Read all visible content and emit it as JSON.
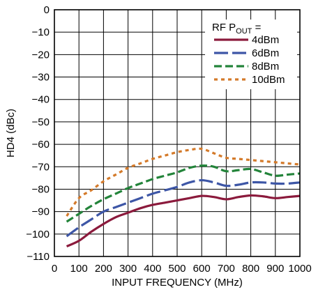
{
  "chart_data": {
    "type": "line",
    "xlabel": "INPUT FREQUENCY (MHz)",
    "ylabel": "HD4 (dBc)",
    "xlim": [
      0,
      1000
    ],
    "ylim": [
      -110,
      0
    ],
    "x_ticks": [
      0,
      100,
      200,
      300,
      400,
      500,
      600,
      700,
      800,
      900,
      1000
    ],
    "y_ticks": [
      0,
      -10,
      -20,
      -30,
      -40,
      -50,
      -60,
      -70,
      -80,
      -90,
      -100,
      -110
    ],
    "x_tick_labels": [
      "0",
      "100",
      "200",
      "300",
      "400",
      "500",
      "600",
      "700",
      "800",
      "900",
      "1000"
    ],
    "y_tick_labels": [
      "0",
      "−10",
      "−20",
      "−30",
      "−40",
      "−50",
      "−60",
      "−70",
      "−80",
      "−90",
      "−100",
      "−110"
    ],
    "grid": true,
    "legend": {
      "placement": "top-right",
      "title_main": "RF P",
      "title_sub": "OUT",
      "title_suffix": " ="
    },
    "series": [
      {
        "name": "4dBm",
        "color": "#8b1a3c",
        "dash": "solid",
        "x": [
          50,
          100,
          150,
          200,
          250,
          300,
          350,
          400,
          450,
          500,
          550,
          600,
          650,
          700,
          750,
          800,
          850,
          900,
          950,
          1000
        ],
        "y": [
          -105.5,
          -103,
          -99,
          -95.5,
          -92.5,
          -90.5,
          -88.5,
          -87,
          -86,
          -85,
          -84,
          -83,
          -83.5,
          -84.5,
          -83.5,
          -82.8,
          -83.2,
          -84,
          -83.5,
          -83
        ]
      },
      {
        "name": "6dBm",
        "color": "#3d56a6",
        "dash": "long-dash",
        "x": [
          50,
          100,
          150,
          200,
          250,
          300,
          350,
          400,
          450,
          500,
          550,
          600,
          650,
          700,
          750,
          800,
          850,
          900,
          950,
          1000
        ],
        "y": [
          -101,
          -97,
          -93.5,
          -90,
          -88,
          -86,
          -84,
          -82,
          -80.5,
          -79,
          -77,
          -76,
          -77,
          -78.5,
          -78,
          -77,
          -77,
          -77.5,
          -77.5,
          -77
        ]
      },
      {
        "name": "8dBm",
        "color": "#23843a",
        "dash": "medium-dash",
        "x": [
          50,
          100,
          150,
          200,
          250,
          300,
          350,
          400,
          450,
          500,
          550,
          600,
          650,
          700,
          750,
          800,
          850,
          900,
          950,
          1000
        ],
        "y": [
          -94.5,
          -91,
          -87.5,
          -84.5,
          -82,
          -79.5,
          -77.5,
          -75.5,
          -74,
          -72.5,
          -70.5,
          -69.5,
          -70,
          -72,
          -71.5,
          -71,
          -72.5,
          -74,
          -73.5,
          -73
        ]
      },
      {
        "name": "10dBm",
        "color": "#d47a2a",
        "dash": "short-dash",
        "x": [
          50,
          100,
          150,
          200,
          250,
          300,
          350,
          400,
          450,
          500,
          550,
          600,
          650,
          700,
          750,
          800,
          850,
          900,
          950,
          1000
        ],
        "y": [
          -92,
          -84,
          -80.5,
          -76.5,
          -73.5,
          -70.5,
          -68.5,
          -66.5,
          -65,
          -63.5,
          -62.5,
          -62,
          -64,
          -66,
          -66.5,
          -67,
          -67.5,
          -68,
          -68.5,
          -69
        ]
      }
    ]
  }
}
